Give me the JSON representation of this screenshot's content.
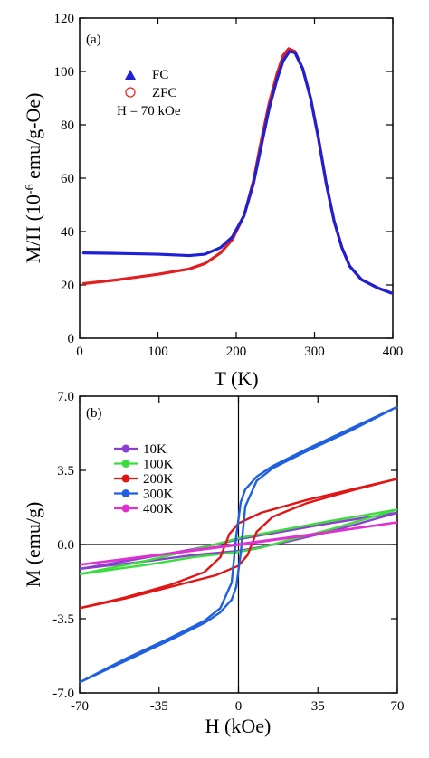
{
  "chart_data": [
    {
      "type": "line",
      "panel_label": "(a)",
      "xlabel": "T (K)",
      "ylabel_prefix": "M/H (10",
      "ylabel_exp": "-6",
      "ylabel_suffix": "emu/g-Oe)",
      "xlim": [
        0,
        400
      ],
      "ylim": [
        0,
        120
      ],
      "xticks": [
        "0",
        "100",
        "200",
        "300",
        "400"
      ],
      "yticks": [
        "0",
        "20",
        "40",
        "60",
        "80",
        "100",
        "120"
      ],
      "xtick_values": [
        0,
        100,
        200,
        300,
        400
      ],
      "ytick_values": [
        0,
        20,
        40,
        60,
        80,
        100,
        120
      ],
      "legend_note": "H = 70 kOe",
      "series": [
        {
          "name": "FC",
          "marker": "triangle",
          "color": "#1f1fd6",
          "points": [
            [
              5,
              32
            ],
            [
              50,
              31.8
            ],
            [
              100,
              31.5
            ],
            [
              140,
              31
            ],
            [
              160,
              31.5
            ],
            [
              180,
              34
            ],
            [
              195,
              38
            ],
            [
              210,
              46
            ],
            [
              222,
              58
            ],
            [
              232,
              72
            ],
            [
              242,
              86
            ],
            [
              252,
              97
            ],
            [
              260,
              104
            ],
            [
              268,
              107.5
            ],
            [
              275,
              107
            ],
            [
              285,
              101
            ],
            [
              295,
              90
            ],
            [
              305,
              75
            ],
            [
              315,
              58
            ],
            [
              325,
              44
            ],
            [
              335,
              34
            ],
            [
              345,
              27
            ],
            [
              360,
              22
            ],
            [
              380,
              19
            ],
            [
              398,
              17
            ]
          ]
        },
        {
          "name": "ZFC",
          "marker": "open-circle",
          "color": "#e02020",
          "points": [
            [
              5,
              20.5
            ],
            [
              50,
              22
            ],
            [
              100,
              24
            ],
            [
              140,
              26
            ],
            [
              160,
              28
            ],
            [
              180,
              32
            ],
            [
              195,
              37
            ],
            [
              210,
              46
            ],
            [
              222,
              59
            ],
            [
              232,
              74
            ],
            [
              242,
              88
            ],
            [
              252,
              99
            ],
            [
              260,
              106
            ],
            [
              267,
              108.5
            ],
            [
              275,
              107.5
            ],
            [
              285,
              101
            ],
            [
              295,
              90
            ],
            [
              305,
              75
            ],
            [
              315,
              58
            ],
            [
              325,
              44
            ],
            [
              335,
              34
            ],
            [
              345,
              27
            ],
            [
              360,
              22
            ],
            [
              380,
              19
            ],
            [
              398,
              17
            ]
          ]
        }
      ]
    },
    {
      "type": "line",
      "panel_label": "(b)",
      "xlabel": "H (kOe)",
      "ylabel": "M (emu/g)",
      "xlim": [
        -70,
        70
      ],
      "ylim": [
        -7,
        7
      ],
      "xticks": [
        "-70",
        "-35",
        "0",
        "35",
        "70"
      ],
      "yticks": [
        "-7.0",
        "-3.5",
        "0.0",
        "3.5",
        "7.0"
      ],
      "xtick_values": [
        -70,
        -35,
        0,
        35,
        70
      ],
      "ytick_values": [
        -7,
        -3.5,
        0,
        3.5,
        7
      ],
      "series": [
        {
          "name": "10K",
          "color": "#8a3fd1",
          "upper": [
            [
              -70,
              -1.15
            ],
            [
              -40,
              -0.6
            ],
            [
              -20,
              -0.22
            ],
            [
              -5,
              0.12
            ],
            [
              0,
              0.25
            ],
            [
              20,
              0.62
            ],
            [
              40,
              1.0
            ],
            [
              70,
              1.5
            ]
          ],
          "lower": [
            [
              -70,
              -1.15
            ],
            [
              -40,
              -0.78
            ],
            [
              -20,
              -0.5
            ],
            [
              0,
              -0.3
            ],
            [
              10,
              -0.12
            ],
            [
              20,
              0.1
            ],
            [
              40,
              0.6
            ],
            [
              70,
              1.5
            ]
          ]
        },
        {
          "name": "100K",
          "color": "#3ddc3d",
          "upper": [
            [
              -70,
              -1.4
            ],
            [
              -40,
              -0.75
            ],
            [
              -20,
              -0.25
            ],
            [
              -5,
              0.15
            ],
            [
              0,
              0.3
            ],
            [
              20,
              0.7
            ],
            [
              40,
              1.1
            ],
            [
              70,
              1.65
            ]
          ],
          "lower": [
            [
              -70,
              -1.4
            ],
            [
              -40,
              -0.95
            ],
            [
              -20,
              -0.6
            ],
            [
              0,
              -0.35
            ],
            [
              10,
              -0.15
            ],
            [
              20,
              0.15
            ],
            [
              40,
              0.7
            ],
            [
              70,
              1.65
            ]
          ]
        },
        {
          "name": "200K",
          "color": "#e01515",
          "upper": [
            [
              -70,
              -3.0
            ],
            [
              -50,
              -2.5
            ],
            [
              -30,
              -1.9
            ],
            [
              -15,
              -1.3
            ],
            [
              -8,
              -0.6
            ],
            [
              -4,
              0.5
            ],
            [
              0,
              1.0
            ],
            [
              10,
              1.5
            ],
            [
              30,
              2.1
            ],
            [
              50,
              2.6
            ],
            [
              70,
              3.1
            ]
          ],
          "lower": [
            [
              -70,
              -3.0
            ],
            [
              -50,
              -2.55
            ],
            [
              -30,
              -2.0
            ],
            [
              -10,
              -1.45
            ],
            [
              0,
              -1.0
            ],
            [
              4,
              -0.5
            ],
            [
              8,
              0.6
            ],
            [
              15,
              1.3
            ],
            [
              30,
              1.95
            ],
            [
              50,
              2.55
            ],
            [
              70,
              3.1
            ]
          ]
        },
        {
          "name": "300K",
          "color": "#1f5fe0",
          "upper": [
            [
              -70,
              -6.5
            ],
            [
              -50,
              -5.4
            ],
            [
              -30,
              -4.4
            ],
            [
              -15,
              -3.6
            ],
            [
              -8,
              -3.0
            ],
            [
              -3,
              -1.8
            ],
            [
              -1,
              0.4
            ],
            [
              1,
              2.0
            ],
            [
              3,
              2.6
            ],
            [
              8,
              3.2
            ],
            [
              15,
              3.7
            ],
            [
              30,
              4.5
            ],
            [
              50,
              5.5
            ],
            [
              70,
              6.5
            ]
          ],
          "lower": [
            [
              -70,
              -6.5
            ],
            [
              -50,
              -5.5
            ],
            [
              -30,
              -4.5
            ],
            [
              -15,
              -3.7
            ],
            [
              -8,
              -3.2
            ],
            [
              -3,
              -2.6
            ],
            [
              -1,
              -2.0
            ],
            [
              1,
              -0.4
            ],
            [
              3,
              1.8
            ],
            [
              8,
              3.0
            ],
            [
              15,
              3.6
            ],
            [
              30,
              4.4
            ],
            [
              50,
              5.4
            ],
            [
              70,
              6.5
            ]
          ]
        },
        {
          "name": "400K",
          "color": "#e030d0",
          "upper": [
            [
              -70,
              -0.95
            ],
            [
              -35,
              -0.48
            ],
            [
              0,
              0.02
            ],
            [
              35,
              0.52
            ],
            [
              70,
              1.05
            ]
          ],
          "lower": [
            [
              -70,
              -0.95
            ],
            [
              -35,
              -0.5
            ],
            [
              0,
              -0.02
            ],
            [
              35,
              0.5
            ],
            [
              70,
              1.05
            ]
          ]
        }
      ]
    }
  ]
}
